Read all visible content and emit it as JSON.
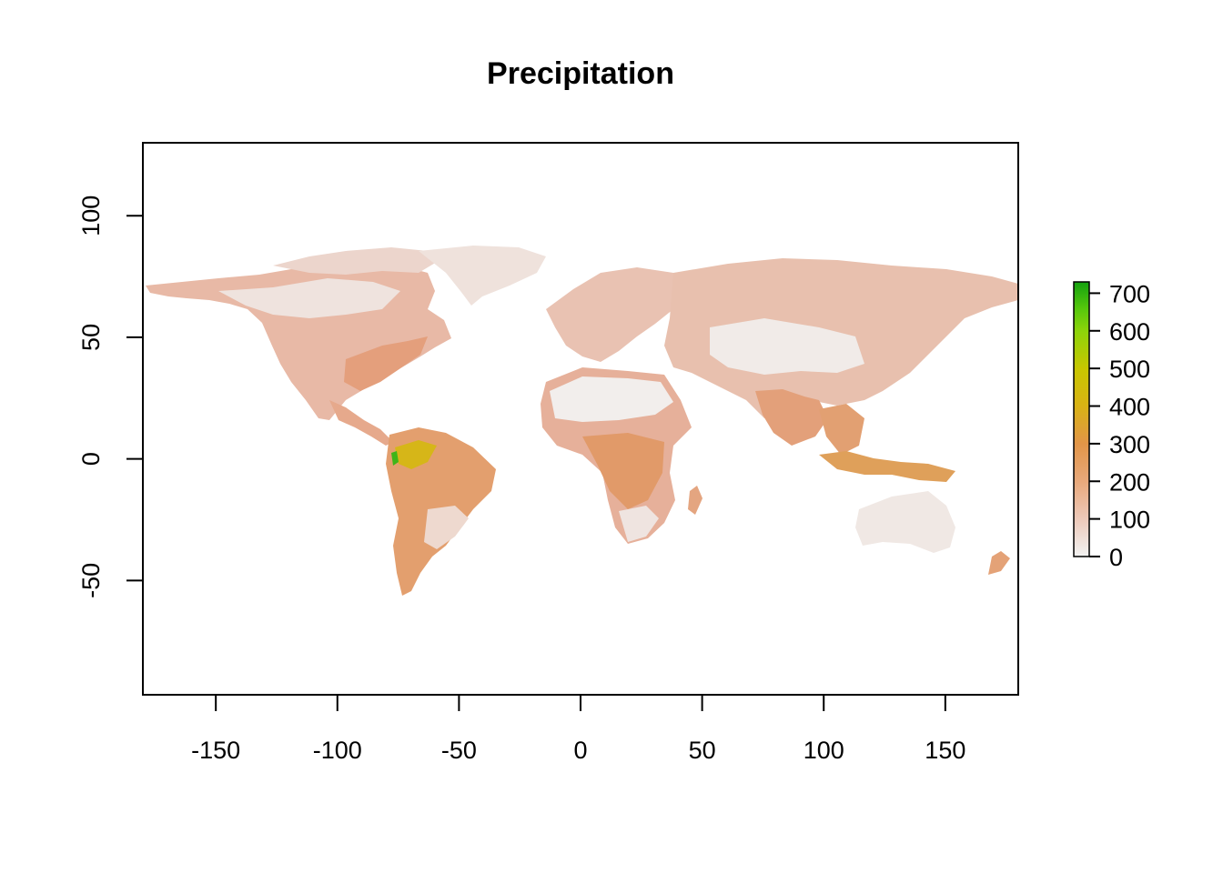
{
  "chart_data": {
    "type": "heatmap",
    "title": "Precipitation",
    "xlabel": "",
    "ylabel": "",
    "xlim": [
      -180,
      180
    ],
    "ylim": [
      -97,
      130
    ],
    "x_ticks": [
      -150,
      -100,
      -50,
      0,
      50,
      100,
      150
    ],
    "y_ticks": [
      100,
      50,
      0,
      -50
    ],
    "grid": false,
    "legend": {
      "type": "colorbar",
      "placement": "right",
      "min": 0,
      "max": 730,
      "ticks": [
        0,
        100,
        200,
        300,
        400,
        500,
        600,
        700
      ],
      "colors": [
        "#f2f2f2",
        "#edc8b8",
        "#e8a97c",
        "#e29548",
        "#d9b314",
        "#c9c600",
        "#8ed40a",
        "#58c80c",
        "#14a10f"
      ]
    }
  },
  "colors": {
    "ocean": "#ffffff",
    "low": "#f2eeec",
    "mid": "#e7b8a5",
    "high": "#e19a69",
    "wet": "#d9b314",
    "wettest": "#3fb518"
  }
}
